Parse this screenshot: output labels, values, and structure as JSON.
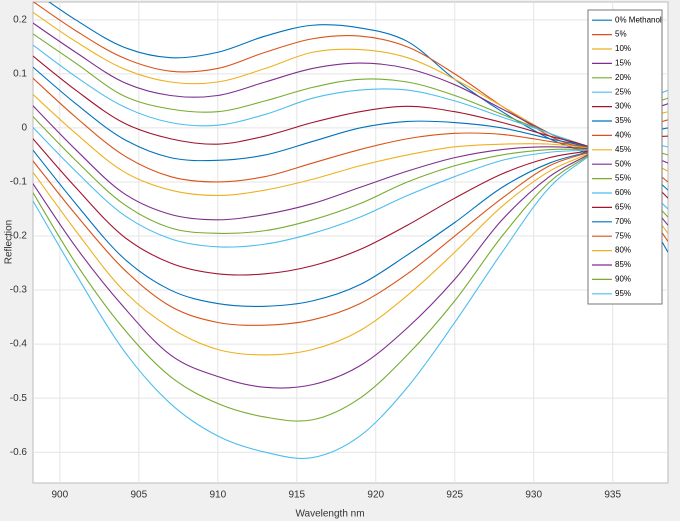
{
  "chart_data": {
    "type": "line",
    "xlabel": "Wavelength nm",
    "ylabel": "Reflection",
    "x": [
      898,
      901,
      904,
      907,
      910,
      913,
      916,
      919,
      922,
      925,
      928,
      931,
      934,
      937,
      938.5
    ],
    "xlim": [
      898.3,
      938.5
    ],
    "ylim": [
      -0.657,
      0.233
    ],
    "xticks": [
      900,
      905,
      910,
      915,
      920,
      925,
      930,
      935
    ],
    "yticks": [
      0.2,
      0.1,
      0,
      -0.1,
      -0.2,
      -0.3,
      -0.4,
      -0.5,
      -0.6
    ],
    "grid": true,
    "legend": "upper right",
    "series": [
      {
        "name": "0% Methanol",
        "color": "#0072BD",
        "values": [
          0.26,
          0.2,
          0.15,
          0.13,
          0.14,
          0.17,
          0.19,
          0.185,
          0.16,
          0.09,
          0.03,
          -0.02,
          -0.06,
          -0.16,
          -0.23
        ]
      },
      {
        "name": "5%",
        "color": "#D95319",
        "values": [
          0.24,
          0.18,
          0.13,
          0.105,
          0.11,
          0.14,
          0.165,
          0.17,
          0.15,
          0.1,
          0.04,
          -0.015,
          -0.055,
          -0.15,
          -0.21
        ]
      },
      {
        "name": "10%",
        "color": "#EDB120",
        "values": [
          0.22,
          0.16,
          0.11,
          0.085,
          0.085,
          0.11,
          0.14,
          0.145,
          0.13,
          0.09,
          0.04,
          -0.01,
          -0.05,
          -0.14,
          -0.195
        ]
      },
      {
        "name": "15%",
        "color": "#7E2F8E",
        "values": [
          0.2,
          0.14,
          0.085,
          0.06,
          0.06,
          0.085,
          0.11,
          0.12,
          0.11,
          0.08,
          0.035,
          -0.01,
          -0.05,
          -0.13,
          -0.18
        ]
      },
      {
        "name": "20%",
        "color": "#77AC30",
        "values": [
          0.18,
          0.12,
          0.06,
          0.035,
          0.03,
          0.05,
          0.075,
          0.09,
          0.085,
          0.06,
          0.025,
          -0.01,
          -0.045,
          -0.12,
          -0.165
        ]
      },
      {
        "name": "25%",
        "color": "#4DBEEE",
        "values": [
          0.16,
          0.095,
          0.04,
          0.01,
          0.005,
          0.025,
          0.055,
          0.07,
          0.07,
          0.05,
          0.02,
          -0.01,
          -0.045,
          -0.11,
          -0.15
        ]
      },
      {
        "name": "30%",
        "color": "#A2142F",
        "values": [
          0.14,
          0.07,
          0.01,
          -0.02,
          -0.03,
          -0.015,
          0.01,
          0.03,
          0.04,
          0.03,
          0.01,
          -0.015,
          -0.04,
          -0.09,
          -0.13
        ]
      },
      {
        "name": "35%",
        "color": "#0072BD",
        "values": [
          0.12,
          0.045,
          -0.02,
          -0.055,
          -0.06,
          -0.05,
          -0.025,
          0,
          0.012,
          0.01,
          0,
          -0.02,
          -0.04,
          -0.08,
          -0.115
        ]
      },
      {
        "name": "40%",
        "color": "#D95319",
        "values": [
          0.1,
          0.02,
          -0.05,
          -0.09,
          -0.1,
          -0.09,
          -0.065,
          -0.04,
          -0.02,
          -0.01,
          -0.012,
          -0.025,
          -0.04,
          -0.07,
          -0.1
        ]
      },
      {
        "name": "45%",
        "color": "#EDB120",
        "values": [
          0.07,
          -0.01,
          -0.08,
          -0.115,
          -0.125,
          -0.115,
          -0.095,
          -0.07,
          -0.05,
          -0.035,
          -0.03,
          -0.03,
          -0.04,
          -0.06,
          -0.08
        ]
      },
      {
        "name": "50%",
        "color": "#7E2F8E",
        "values": [
          0.05,
          -0.04,
          -0.12,
          -0.16,
          -0.17,
          -0.16,
          -0.14,
          -0.11,
          -0.08,
          -0.055,
          -0.04,
          -0.035,
          -0.04,
          -0.05,
          -0.065
        ]
      },
      {
        "name": "55%",
        "color": "#77AC30",
        "values": [
          0.03,
          -0.06,
          -0.14,
          -0.185,
          -0.195,
          -0.19,
          -0.17,
          -0.14,
          -0.1,
          -0.07,
          -0.05,
          -0.04,
          -0.04,
          -0.04,
          -0.05
        ]
      },
      {
        "name": "60%",
        "color": "#4DBEEE",
        "values": [
          0.01,
          -0.08,
          -0.16,
          -0.205,
          -0.22,
          -0.215,
          -0.195,
          -0.165,
          -0.125,
          -0.09,
          -0.06,
          -0.045,
          -0.04,
          -0.03,
          -0.035
        ]
      },
      {
        "name": "65%",
        "color": "#A2142F",
        "values": [
          -0.01,
          -0.11,
          -0.2,
          -0.25,
          -0.27,
          -0.27,
          -0.255,
          -0.225,
          -0.18,
          -0.13,
          -0.085,
          -0.055,
          -0.04,
          -0.02,
          -0.015
        ]
      },
      {
        "name": "70%",
        "color": "#0072BD",
        "values": [
          -0.03,
          -0.14,
          -0.24,
          -0.3,
          -0.325,
          -0.33,
          -0.32,
          -0.29,
          -0.235,
          -0.175,
          -0.11,
          -0.065,
          -0.04,
          -0.01,
          0
        ]
      },
      {
        "name": "75%",
        "color": "#D95319",
        "values": [
          -0.05,
          -0.16,
          -0.26,
          -0.33,
          -0.36,
          -0.365,
          -0.355,
          -0.325,
          -0.27,
          -0.2,
          -0.13,
          -0.07,
          -0.04,
          0,
          0.015
        ]
      },
      {
        "name": "80%",
        "color": "#EDB120",
        "values": [
          -0.07,
          -0.19,
          -0.3,
          -0.37,
          -0.41,
          -0.42,
          -0.41,
          -0.375,
          -0.31,
          -0.23,
          -0.145,
          -0.08,
          -0.04,
          0.015,
          0.03
        ]
      },
      {
        "name": "85%",
        "color": "#7E2F8E",
        "values": [
          -0.09,
          -0.22,
          -0.33,
          -0.42,
          -0.46,
          -0.48,
          -0.475,
          -0.44,
          -0.37,
          -0.28,
          -0.17,
          -0.09,
          -0.04,
          0.025,
          0.045
        ]
      },
      {
        "name": "90%",
        "color": "#77AC30",
        "values": [
          -0.105,
          -0.25,
          -0.37,
          -0.46,
          -0.51,
          -0.535,
          -0.54,
          -0.5,
          -0.42,
          -0.32,
          -0.2,
          -0.1,
          -0.04,
          0.035,
          0.055
        ]
      },
      {
        "name": "95%",
        "color": "#4DBEEE",
        "values": [
          -0.12,
          -0.27,
          -0.41,
          -0.51,
          -0.57,
          -0.6,
          -0.61,
          -0.57,
          -0.48,
          -0.36,
          -0.23,
          -0.11,
          -0.04,
          0.045,
          0.07
        ]
      }
    ]
  }
}
